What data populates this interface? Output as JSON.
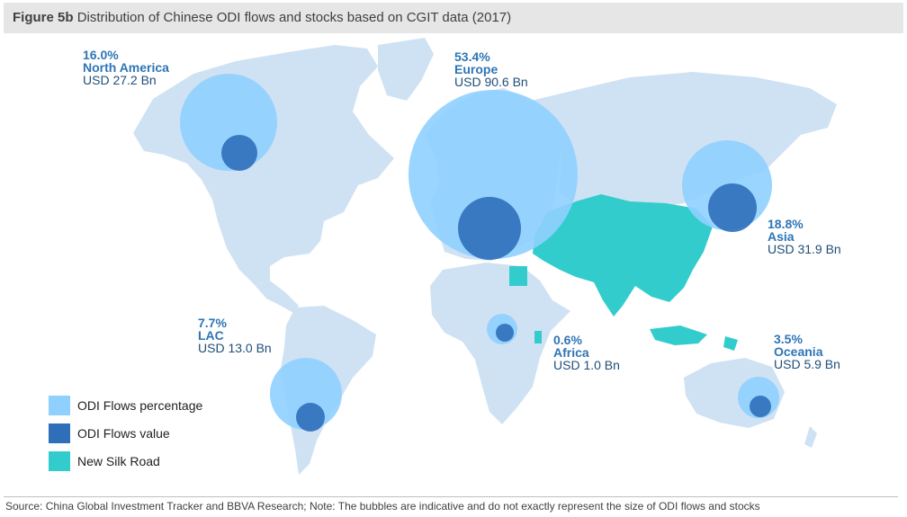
{
  "title": {
    "prefix": "Figure 5b",
    "text": "Distribution of Chinese ODI flows and stocks based on CGIT data (2017)"
  },
  "colors": {
    "land": "#cfe2f3",
    "silk_road": "#33cccc",
    "flow_pct": "#8fd0ff",
    "flow_value": "#2f6fba",
    "label_bold": "#2e75b6",
    "label_text": "#1f4e79"
  },
  "regions": [
    {
      "id": "north-america",
      "pct": "16.0%",
      "name": "North America",
      "value": "USD 27.2 Bn"
    },
    {
      "id": "europe",
      "pct": "53.4%",
      "name": "Europe",
      "value": "USD 90.6 Bn"
    },
    {
      "id": "asia",
      "pct": "18.8%",
      "name": "Asia",
      "value": "USD 31.9 Bn"
    },
    {
      "id": "lac",
      "pct": "7.7%",
      "name": "LAC",
      "value": "USD 13.0 Bn"
    },
    {
      "id": "africa",
      "pct": "0.6%",
      "name": "Africa",
      "value": "USD 1.0 Bn"
    },
    {
      "id": "oceania",
      "pct": "3.5%",
      "name": "Oceania",
      "value": "USD 5.9 Bn"
    }
  ],
  "legend": [
    {
      "label": "ODI Flows percentage",
      "color": "#8fd0ff"
    },
    {
      "label": "ODI Flows value",
      "color": "#2f6fba"
    },
    {
      "label": "New Silk Road",
      "color": "#33cccc"
    }
  ],
  "source": "Source: China Global Investment Tracker and BBVA Research; Note: The bubbles are indicative and do not exactly represent the size of ODI flows and stocks"
}
